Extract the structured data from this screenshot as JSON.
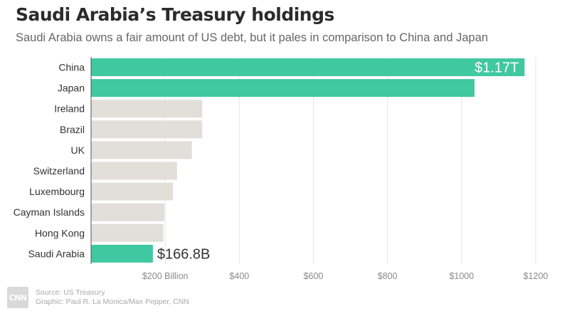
{
  "chart_data": {
    "type": "bar",
    "orientation": "horizontal",
    "title": "Saudi Arabia’s Treasury holdings",
    "subtitle": "Saudi Arabia owns a fair amount of US debt, but it pales in comparison to China and Japan",
    "categories": [
      "China",
      "Japan",
      "Ireland",
      "Brazil",
      "UK",
      "Switzerland",
      "Luxembourg",
      "Cayman Islands",
      "Hong Kong",
      "Saudi Arabia"
    ],
    "values": [
      1170,
      1035,
      300,
      300,
      272,
      232,
      221,
      198,
      195,
      166.8
    ],
    "highlighted": [
      true,
      true,
      false,
      false,
      false,
      false,
      false,
      false,
      false,
      true
    ],
    "data_labels": [
      "$1.17T",
      "",
      "",
      "",
      "",
      "",
      "",
      "",
      "",
      "$166.8B"
    ],
    "xlim": [
      0,
      1200
    ],
    "x_ticks": [
      {
        "value": 200,
        "label": "$200 Billion"
      },
      {
        "value": 400,
        "label": "$400"
      },
      {
        "value": 600,
        "label": "$600"
      },
      {
        "value": 800,
        "label": "$800"
      },
      {
        "value": 1000,
        "label": "$1000"
      },
      {
        "value": 1200,
        "label": "$1200"
      }
    ],
    "grid": true,
    "colors": {
      "highlight": "#40c8a0",
      "default": "#e2ded9",
      "grid": "#e6e6e6",
      "axis": "#555555"
    }
  },
  "footer": {
    "logo_text": "CNN",
    "source": "Source: US Treasury",
    "graphic": "Graphic: Paul R. La Monica/Max Pepper, CNN"
  }
}
